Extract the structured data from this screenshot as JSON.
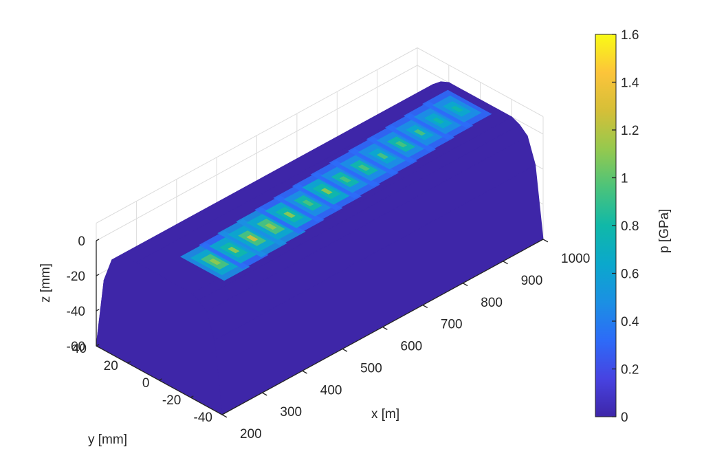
{
  "chart_data": {
    "type": "surface",
    "x_axis": {
      "label": "x [m]",
      "ticks": [
        200,
        300,
        400,
        500,
        600,
        700,
        800,
        900,
        1000
      ],
      "range": [
        200,
        1000
      ]
    },
    "y_axis": {
      "label": "y [mm]",
      "ticks": [
        -40,
        -20,
        0,
        20,
        40
      ],
      "range": [
        -40,
        40
      ]
    },
    "z_axis": {
      "label": "z [mm]",
      "ticks": [
        -60,
        -40,
        -20,
        0
      ],
      "range": [
        -60,
        0
      ]
    },
    "colorbar": {
      "label": "p [GPa]",
      "ticks": [
        "0",
        "0.2",
        "0.4",
        "0.6",
        "0.8",
        "1",
        "1.2",
        "1.4",
        "1.6"
      ],
      "range": [
        0,
        1.6
      ],
      "colormap": "parula",
      "colors": [
        "#3e26a8",
        "#4743e1",
        "#2d6bf8",
        "#1b90e3",
        "#0ba8cc",
        "#10b8a8",
        "#4bc37b",
        "#95c94e",
        "#d5bf38",
        "#fcc43a",
        "#f9fb15"
      ]
    },
    "surface": {
      "description_values": "rail head cross-section profile extruded along x; contact pressure p mostly 0, with repeating pressure patches near y≈-20 to 0 mm along x",
      "base_color": "#3e26a8",
      "profile_y": [
        -40,
        -35,
        -30,
        -25,
        -20,
        -10,
        0,
        10,
        20,
        25,
        30,
        35,
        40
      ],
      "profile_z": [
        -60,
        -20,
        -6,
        -2,
        0,
        0,
        0,
        0,
        0,
        -2,
        -6,
        -20,
        -60
      ],
      "contact_patches_x": [
        300,
        350,
        400,
        450,
        500,
        550,
        600,
        650,
        700,
        750,
        800,
        850,
        900,
        950
      ],
      "peak_pressure": [
        1.2,
        1.1,
        1.3,
        1.2,
        1.1,
        1.0,
        1.1,
        1.0,
        1.0,
        0.9,
        1.0,
        0.9,
        0.8,
        0.8
      ]
    },
    "grid": true
  }
}
